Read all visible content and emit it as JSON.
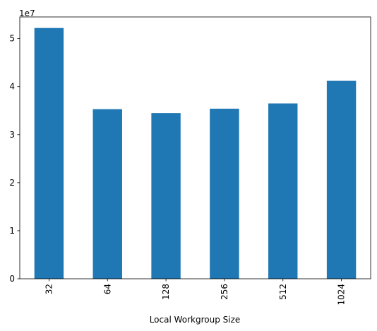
{
  "chart_data": {
    "type": "bar",
    "categories": [
      "32",
      "64",
      "128",
      "256",
      "512",
      "1024"
    ],
    "values": [
      52200000,
      35300000,
      34500000,
      35400000,
      36500000,
      41200000
    ],
    "title": "",
    "xlabel": "Local Workgroup Size",
    "ylabel": "",
    "ylim": [
      0,
      54500000
    ],
    "y_offset_label": "1e7",
    "yticks": [
      0,
      10000000,
      20000000,
      30000000,
      40000000,
      50000000
    ],
    "ytick_labels": [
      "0",
      "1",
      "2",
      "3",
      "4",
      "5"
    ],
    "x_tick_rotation": "vertical",
    "grid": false,
    "legend": "none",
    "bar_color": "#1f77b4"
  }
}
